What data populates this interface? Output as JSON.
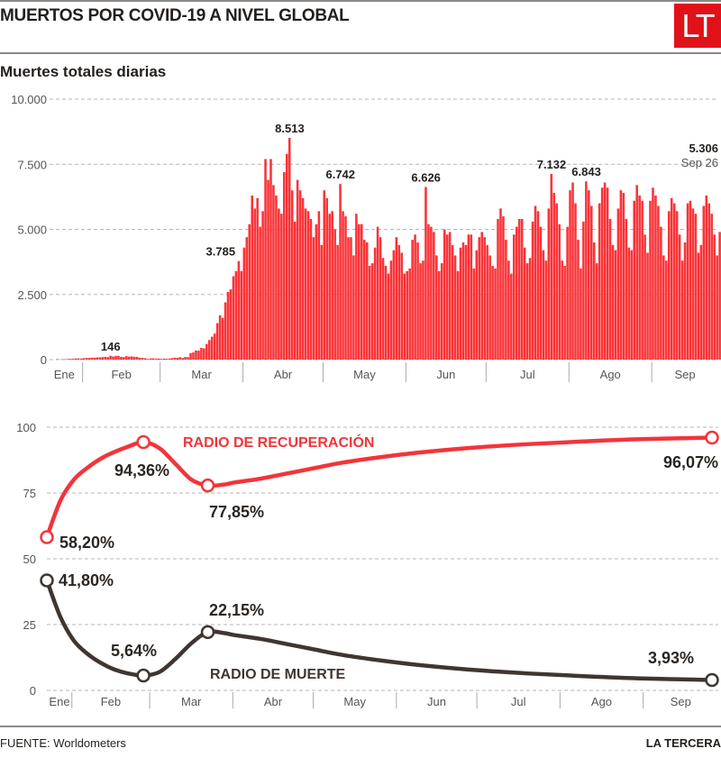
{
  "header": {
    "title": "MUERTOS POR COVID-19 A NIVEL GLOBAL",
    "logo": "LT"
  },
  "footer": {
    "source": "FUENTE: Worldometers",
    "brand": "LA TERCERA"
  },
  "chart_data": [
    {
      "type": "bar",
      "title": "Muertes totales diarias",
      "xlabel": "",
      "ylabel": "",
      "ylim": [
        0,
        10000
      ],
      "yticks": [
        0,
        2500,
        5000,
        7500,
        10000
      ],
      "ytick_labels": [
        "0",
        "2.500",
        "5.000",
        "7.500",
        "10.000"
      ],
      "grid": true,
      "months": [
        "Ene",
        "Feb",
        "Mar",
        "Abr",
        "May",
        "Jun",
        "Jul",
        "Ago",
        "Sep"
      ],
      "start_date": "Jan 22",
      "end_date": "Sep 26",
      "values": [
        17,
        8,
        16,
        14,
        26,
        26,
        38,
        43,
        46,
        45,
        57,
        64,
        66,
        73,
        73,
        86,
        89,
        97,
        108,
        97,
        146,
        121,
        143,
        142,
        105,
        98,
        136,
        116,
        121,
        108,
        104,
        71,
        64,
        52,
        29,
        44,
        47,
        35,
        42,
        31,
        38,
        31,
        37,
        58,
        72,
        70,
        93,
        64,
        100,
        98,
        250,
        275,
        353,
        345,
        450,
        432,
        600,
        752,
        880,
        1000,
        1400,
        1700,
        1600,
        2200,
        2600,
        2700,
        3200,
        3400,
        3785,
        3400,
        4300,
        4700,
        5200,
        6300,
        5800,
        6200,
        5100,
        5700,
        7700,
        6900,
        7700,
        6700,
        6300,
        5800,
        5600,
        7200,
        7900,
        8513,
        6500,
        5300,
        6900,
        6500,
        6200,
        5800,
        5700,
        5400,
        4700,
        5200,
        5700,
        4400,
        6500,
        6200,
        5600,
        5700,
        5000,
        4400,
        6742,
        5700,
        5500,
        4700,
        4700,
        4000,
        5600,
        5200,
        5200,
        4600,
        4500,
        3600,
        3700,
        4300,
        5100,
        4700,
        3900,
        3600,
        3300,
        3800,
        4200,
        4700,
        4400,
        4100,
        3300,
        3400,
        3500,
        4600,
        4800,
        4500,
        3700,
        3800,
        6626,
        5200,
        5100,
        4900,
        4000,
        3400,
        3700,
        5000,
        4800,
        4900,
        4400,
        4000,
        3400,
        4300,
        4500,
        4400,
        4800,
        4800,
        3500,
        4200,
        4700,
        4900,
        4700,
        4400,
        4000,
        3600,
        3500,
        5400,
        5800,
        5500,
        4600,
        3800,
        3300,
        4800,
        5100,
        5400,
        5400,
        4300,
        3700,
        3900,
        5300,
        5900,
        5700,
        5100,
        4200,
        3800,
        5800,
        7132,
        6400,
        6000,
        5200,
        3800,
        3600,
        5100,
        6500,
        6800,
        6000,
        4600,
        3500,
        5300,
        6843,
        6500,
        5900,
        4500,
        3700,
        6000,
        6600,
        6800,
        6600,
        5400,
        4400,
        4200,
        5800,
        6500,
        6400,
        5400,
        4300,
        4200,
        6100,
        6700,
        6300,
        6100,
        4800,
        4100,
        6100,
        6600,
        6300,
        5900,
        5100,
        4000,
        3800,
        5700,
        6200,
        6000,
        5700,
        4800,
        3800,
        4500,
        6000,
        6100,
        5800,
        5600,
        4100,
        4400,
        5900,
        6300,
        6000,
        5600,
        4800,
        4000,
        4900,
        5800,
        5500,
        5900,
        6000,
        5300,
        4200,
        4300,
        6000,
        6400,
        5306
      ],
      "annotations": [
        {
          "label": "146",
          "value": 146
        },
        {
          "label": "3.785",
          "value": 3785
        },
        {
          "label": "8.513",
          "value": 8513
        },
        {
          "label": "6.742",
          "value": 6742
        },
        {
          "label": "6.626",
          "value": 6626
        },
        {
          "label": "7.132",
          "value": 7132
        },
        {
          "label": "6.843",
          "value": 6843
        },
        {
          "label": "5.306",
          "value": 5306,
          "sublabel": "Sep 26"
        }
      ],
      "color": "#f93438"
    },
    {
      "type": "line",
      "title": "",
      "ylim": [
        0,
        100
      ],
      "yticks": [
        0,
        25,
        50,
        75,
        100
      ],
      "ytick_labels": [
        "0",
        "25",
        "50",
        "75",
        "100"
      ],
      "grid": true,
      "months": [
        "Ene",
        "Feb",
        "Mar",
        "Abr",
        "May",
        "Jun",
        "Jul",
        "Ago",
        "Sep"
      ],
      "series": [
        {
          "name": "RADIO DE RECUPERACIÓN",
          "color": "#f2353a",
          "x_days": [
            0,
            5,
            10,
            15,
            20,
            25,
            30,
            36,
            42,
            48,
            54,
            60,
            66,
            70,
            80,
            90,
            100,
            110,
            125,
            140,
            160,
            180,
            200,
            220,
            248
          ],
          "values": [
            58.2,
            72,
            80,
            84.5,
            88,
            90.5,
            92.5,
            94.36,
            92,
            86,
            80,
            77.85,
            78.2,
            79,
            80.5,
            82.5,
            84.5,
            86.5,
            88.7,
            90.5,
            92.3,
            93.6,
            94.6,
            95.4,
            96.07
          ],
          "markers": [
            {
              "x_day": 0,
              "value": 58.2,
              "label": "58,20%"
            },
            {
              "x_day": 36,
              "value": 94.36,
              "label": "94,36%"
            },
            {
              "x_day": 60,
              "value": 77.85,
              "label": "77,85%"
            },
            {
              "x_day": 248,
              "value": 96.07,
              "label": "96,07%"
            }
          ]
        },
        {
          "name": "RADIO DE MUERTE",
          "color": "#3f3631",
          "x_days": [
            0,
            5,
            10,
            15,
            20,
            25,
            30,
            36,
            42,
            48,
            54,
            60,
            66,
            70,
            80,
            90,
            100,
            110,
            125,
            140,
            160,
            180,
            200,
            220,
            248
          ],
          "values": [
            41.8,
            28,
            19,
            14,
            10.5,
            8,
            6.5,
            5.64,
            7,
            12,
            18,
            22.15,
            21.8,
            21,
            19.5,
            17.5,
            15.5,
            13.5,
            11.3,
            9.5,
            7.7,
            6.4,
            5.4,
            4.6,
            3.93
          ],
          "markers": [
            {
              "x_day": 0,
              "value": 41.8,
              "label": "41,80%"
            },
            {
              "x_day": 36,
              "value": 5.64,
              "label": "5,64%"
            },
            {
              "x_day": 60,
              "value": 22.15,
              "label": "22,15%"
            },
            {
              "x_day": 248,
              "value": 3.93,
              "label": "3,93%"
            }
          ]
        }
      ]
    }
  ]
}
